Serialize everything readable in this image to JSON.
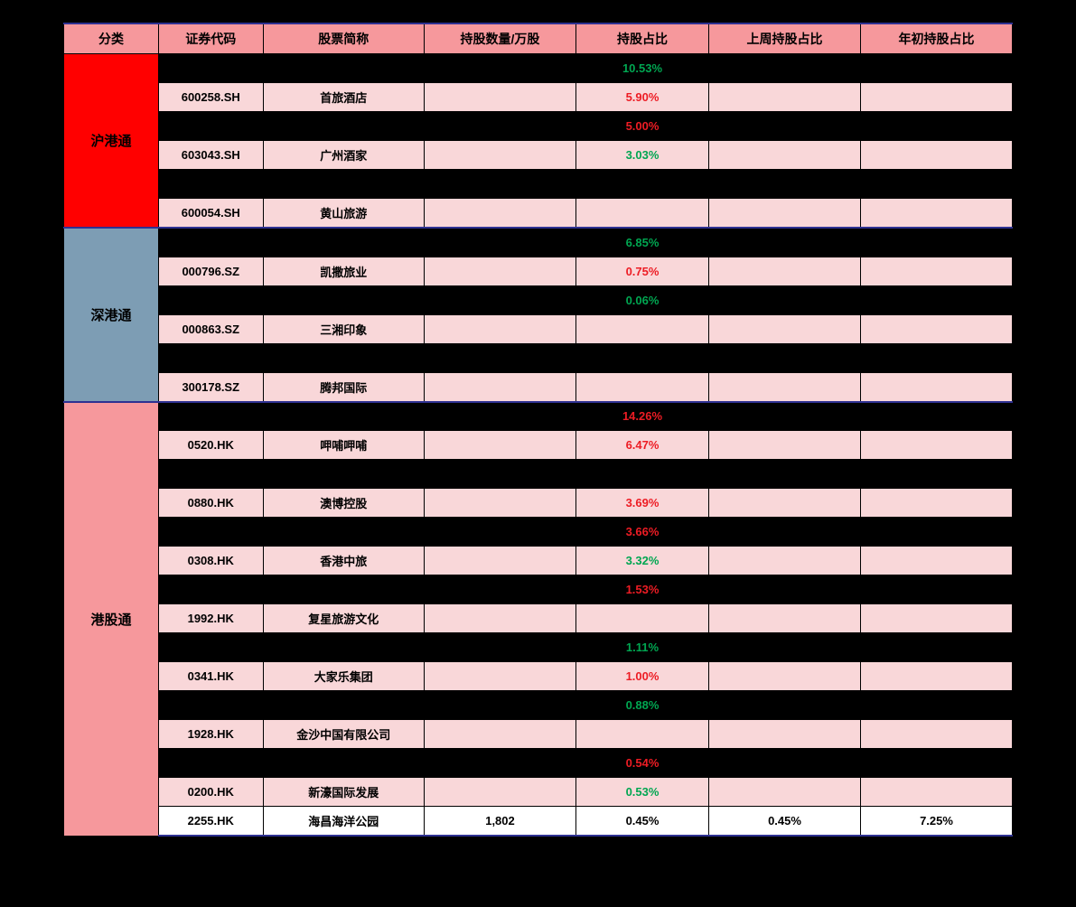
{
  "headers": [
    "分类",
    "证券代码",
    "股票简称",
    "持股数量/万股",
    "持股占比",
    "上周持股占比",
    "年初持股占比"
  ],
  "col_widths": [
    "10%",
    "11%",
    "17%",
    "16%",
    "14%",
    "16%",
    "16%"
  ],
  "categories": [
    {
      "name": "沪港通",
      "bg_class": "cat-red",
      "rows": [
        {
          "style": "black",
          "code": "",
          "name": "",
          "qty": "",
          "pct": "10.53%",
          "pct_color": "green",
          "prev": "",
          "start": ""
        },
        {
          "style": "pink",
          "code": "600258.SH",
          "name": "首旅酒店",
          "qty": "",
          "pct": "5.90%",
          "pct_color": "red",
          "prev": "",
          "start": ""
        },
        {
          "style": "black",
          "code": "",
          "name": "",
          "qty": "",
          "pct": "5.00%",
          "pct_color": "red",
          "prev": "",
          "start": ""
        },
        {
          "style": "pink",
          "code": "603043.SH",
          "name": "广州酒家",
          "qty": "",
          "pct": "3.03%",
          "pct_color": "green",
          "prev": "",
          "start": ""
        },
        {
          "style": "black",
          "code": "",
          "name": "",
          "qty": "",
          "pct": "",
          "pct_color": "",
          "prev": "",
          "start": ""
        },
        {
          "style": "pink",
          "code": "600054.SH",
          "name": "黄山旅游",
          "qty": "",
          "pct": "",
          "pct_color": "",
          "prev": "",
          "start": ""
        }
      ]
    },
    {
      "name": "深港通",
      "bg_class": "cat-blue",
      "rows": [
        {
          "style": "black",
          "code": "",
          "name": "",
          "qty": "",
          "pct": "6.85%",
          "pct_color": "green",
          "prev": "",
          "start": ""
        },
        {
          "style": "pink",
          "code": "000796.SZ",
          "name": "凯撒旅业",
          "qty": "",
          "pct": "0.75%",
          "pct_color": "red",
          "prev": "",
          "start": ""
        },
        {
          "style": "black",
          "code": "",
          "name": "",
          "qty": "",
          "pct": "0.06%",
          "pct_color": "green",
          "prev": "",
          "start": ""
        },
        {
          "style": "pink",
          "code": "000863.SZ",
          "name": "三湘印象",
          "qty": "",
          "pct": "",
          "pct_color": "",
          "prev": "",
          "start": ""
        },
        {
          "style": "black",
          "code": "",
          "name": "",
          "qty": "",
          "pct": "",
          "pct_color": "",
          "prev": "",
          "start": ""
        },
        {
          "style": "pink",
          "code": "300178.SZ",
          "name": "腾邦国际",
          "qty": "",
          "pct": "",
          "pct_color": "",
          "prev": "",
          "start": ""
        }
      ]
    },
    {
      "name": "港股通",
      "bg_class": "cat-pink",
      "rows": [
        {
          "style": "black",
          "code": "",
          "name": "",
          "qty": "",
          "pct": "14.26%",
          "pct_color": "red",
          "prev": "",
          "start": ""
        },
        {
          "style": "pink",
          "code": "0520.HK",
          "name": "呷哺呷哺",
          "qty": "",
          "pct": "6.47%",
          "pct_color": "red",
          "prev": "",
          "start": ""
        },
        {
          "style": "black",
          "code": "",
          "name": "",
          "qty": "",
          "pct": "",
          "pct_color": "",
          "prev": "",
          "start": ""
        },
        {
          "style": "pink",
          "code": "0880.HK",
          "name": "澳博控股",
          "qty": "",
          "pct": "3.69%",
          "pct_color": "red",
          "prev": "",
          "start": ""
        },
        {
          "style": "black",
          "code": "",
          "name": "",
          "qty": "",
          "pct": "3.66%",
          "pct_color": "red",
          "prev": "",
          "start": ""
        },
        {
          "style": "pink",
          "code": "0308.HK",
          "name": "香港中旅",
          "qty": "",
          "pct": "3.32%",
          "pct_color": "green",
          "prev": "",
          "start": ""
        },
        {
          "style": "black",
          "code": "",
          "name": "",
          "qty": "",
          "pct": "1.53%",
          "pct_color": "red",
          "prev": "",
          "start": ""
        },
        {
          "style": "pink",
          "code": "1992.HK",
          "name": "复星旅游文化",
          "qty": "",
          "pct": "",
          "pct_color": "",
          "prev": "",
          "start": ""
        },
        {
          "style": "black",
          "code": "",
          "name": "",
          "qty": "",
          "pct": "1.11%",
          "pct_color": "green",
          "prev": "",
          "start": ""
        },
        {
          "style": "pink",
          "code": "0341.HK",
          "name": "大家乐集团",
          "qty": "",
          "pct": "1.00%",
          "pct_color": "red",
          "prev": "",
          "start": ""
        },
        {
          "style": "black",
          "code": "",
          "name": "",
          "qty": "",
          "pct": "0.88%",
          "pct_color": "green",
          "prev": "",
          "start": ""
        },
        {
          "style": "pink",
          "code": "1928.HK",
          "name": "金沙中国有限公司",
          "qty": "",
          "pct": "",
          "pct_color": "",
          "prev": "",
          "start": ""
        },
        {
          "style": "black",
          "code": "",
          "name": "",
          "qty": "",
          "pct": "0.54%",
          "pct_color": "red",
          "prev": "",
          "start": ""
        },
        {
          "style": "pink",
          "code": "0200.HK",
          "name": "新濠国际发展",
          "qty": "",
          "pct": "0.53%",
          "pct_color": "green",
          "prev": "",
          "start": ""
        },
        {
          "style": "white",
          "code": "2255.HK",
          "name": "海昌海洋公园",
          "qty": "1,802",
          "pct": "0.45%",
          "pct_color": "",
          "prev": "0.45%",
          "start": "7.25%"
        }
      ]
    }
  ]
}
